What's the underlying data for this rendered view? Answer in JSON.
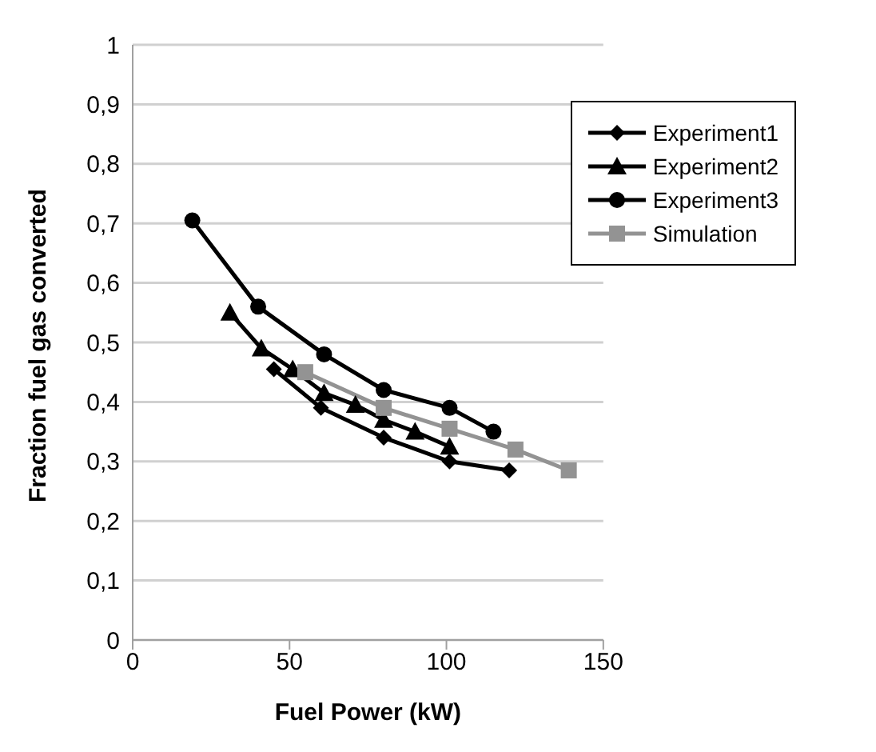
{
  "chart_data": {
    "type": "line",
    "xlabel": "Fuel Power (kW)",
    "ylabel": "Fraction fuel gas converted",
    "xlim": [
      0,
      150
    ],
    "xticks": [
      0,
      50,
      100,
      150
    ],
    "ylim": [
      0,
      1
    ],
    "yticks": [
      {
        "value": 0,
        "label": "0"
      },
      {
        "value": 0.1,
        "label": "0,1"
      },
      {
        "value": 0.2,
        "label": "0,2"
      },
      {
        "value": 0.3,
        "label": "0,3"
      },
      {
        "value": 0.4,
        "label": "0,4"
      },
      {
        "value": 0.5,
        "label": "0,5"
      },
      {
        "value": 0.6,
        "label": "0,6"
      },
      {
        "value": 0.7,
        "label": "0,7"
      },
      {
        "value": 0.8,
        "label": "0,8"
      },
      {
        "value": 0.9,
        "label": "0,9"
      },
      {
        "value": 1,
        "label": "1"
      }
    ],
    "grid": "y",
    "legend": "top right",
    "series": [
      {
        "name": "Experiment1",
        "color": "#000000",
        "marker": "diamond",
        "x": [
          45,
          60,
          80,
          101,
          120
        ],
        "values": [
          0.455,
          0.39,
          0.34,
          0.3,
          0.285
        ]
      },
      {
        "name": "Experiment2",
        "color": "#000000",
        "marker": "triangle",
        "x": [
          31,
          41,
          51,
          61,
          71,
          80,
          90,
          101
        ],
        "values": [
          0.55,
          0.49,
          0.455,
          0.415,
          0.395,
          0.37,
          0.35,
          0.325
        ]
      },
      {
        "name": "Experiment3",
        "color": "#000000",
        "marker": "circle",
        "x": [
          19,
          40,
          61,
          80,
          101,
          115
        ],
        "values": [
          0.705,
          0.56,
          0.48,
          0.42,
          0.39,
          0.35
        ]
      },
      {
        "name": "Simulation",
        "color": "#939393",
        "marker": "square",
        "x": [
          55,
          80,
          101,
          122,
          139
        ],
        "values": [
          0.45,
          0.39,
          0.355,
          0.32,
          0.285
        ]
      }
    ]
  }
}
